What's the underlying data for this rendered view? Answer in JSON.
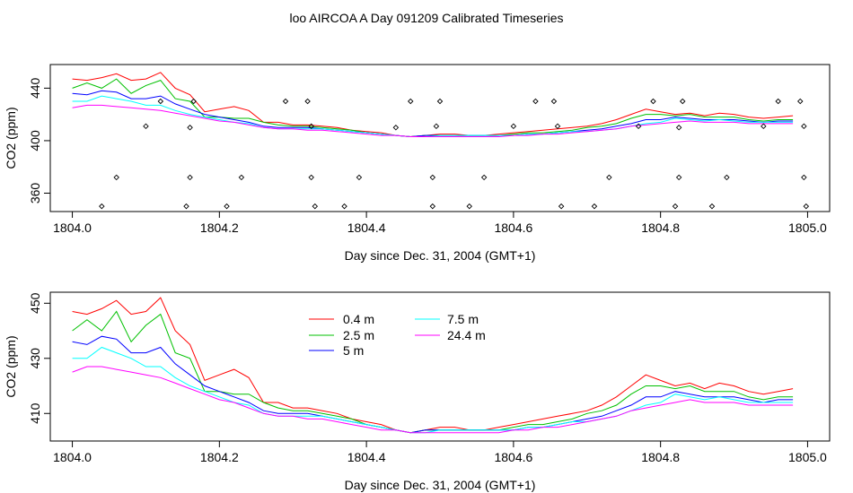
{
  "figure": {
    "title": "loo AIRCOA A  Day 091209  Calibrated Timeseries"
  },
  "chart_data": [
    {
      "type": "line",
      "panel": "top",
      "xlabel": "Day since Dec. 31, 2004 (GMT+1)",
      "ylabel": "CO2 (ppm)",
      "xlim": [
        1803.97,
        1805.03
      ],
      "ylim": [
        346,
        458
      ],
      "xticks": [
        "1804.0",
        "1804.2",
        "1804.4",
        "1804.6",
        "1804.8",
        "1805.0"
      ],
      "yticks": [
        "360",
        "400",
        "440"
      ],
      "grid": false,
      "colors": {
        "0.4 m": "#ff0000",
        "2.5 m": "#00c000",
        "5 m": "#0000ff",
        "7.5 m": "#00ffff",
        "24.4 m": "#ff00ff",
        "points": "#000000"
      },
      "scatter_points": [
        [
          1804.04,
          350
        ],
        [
          1804.06,
          372
        ],
        [
          1804.1,
          411
        ],
        [
          1804.12,
          430
        ],
        [
          1804.155,
          350
        ],
        [
          1804.16,
          372
        ],
        [
          1804.16,
          410
        ],
        [
          1804.165,
          430
        ],
        [
          1804.21,
          350
        ],
        [
          1804.23,
          372
        ],
        [
          1804.29,
          430
        ],
        [
          1804.32,
          430
        ],
        [
          1804.325,
          411
        ],
        [
          1804.325,
          372
        ],
        [
          1804.33,
          350
        ],
        [
          1804.37,
          350
        ],
        [
          1804.39,
          372
        ],
        [
          1804.44,
          410
        ],
        [
          1804.46,
          430
        ],
        [
          1804.49,
          350
        ],
        [
          1804.49,
          372
        ],
        [
          1804.495,
          411
        ],
        [
          1804.5,
          430
        ],
        [
          1804.54,
          350
        ],
        [
          1804.56,
          372
        ],
        [
          1804.6,
          411
        ],
        [
          1804.63,
          430
        ],
        [
          1804.655,
          430
        ],
        [
          1804.66,
          411
        ],
        [
          1804.665,
          350
        ],
        [
          1804.71,
          350
        ],
        [
          1804.73,
          372
        ],
        [
          1804.77,
          411
        ],
        [
          1804.79,
          430
        ],
        [
          1804.82,
          350
        ],
        [
          1804.825,
          372
        ],
        [
          1804.825,
          410
        ],
        [
          1804.83,
          430
        ],
        [
          1804.87,
          350
        ],
        [
          1804.89,
          372
        ],
        [
          1804.94,
          411
        ],
        [
          1804.96,
          430
        ],
        [
          1804.99,
          430
        ],
        [
          1804.995,
          411
        ],
        [
          1804.995,
          372
        ],
        [
          1804.998,
          350
        ]
      ]
    },
    {
      "type": "line",
      "panel": "bottom",
      "xlabel": "Day since Dec. 31, 2004 (GMT+1)",
      "ylabel": "CO2 (ppm)",
      "xlim": [
        1803.97,
        1805.03
      ],
      "ylim": [
        400,
        454
      ],
      "xticks": [
        "1804.0",
        "1804.2",
        "1804.4",
        "1804.6",
        "1804.8",
        "1805.0"
      ],
      "yticks": [
        "410",
        "430",
        "450"
      ],
      "grid": false,
      "legend": [
        {
          "name": "0.4 m",
          "color": "#ff0000"
        },
        {
          "name": "2.5 m",
          "color": "#00c000"
        },
        {
          "name": "5 m",
          "color": "#0000ff"
        },
        {
          "name": "7.5 m",
          "color": "#00ffff"
        },
        {
          "name": "24.4 m",
          "color": "#ff00ff"
        }
      ]
    }
  ],
  "series_x": [
    1804.0,
    1804.02,
    1804.04,
    1804.06,
    1804.08,
    1804.1,
    1804.12,
    1804.14,
    1804.16,
    1804.18,
    1804.2,
    1804.22,
    1804.24,
    1804.26,
    1804.28,
    1804.3,
    1804.32,
    1804.34,
    1804.36,
    1804.38,
    1804.4,
    1804.42,
    1804.44,
    1804.46,
    1804.48,
    1804.5,
    1804.52,
    1804.54,
    1804.56,
    1804.58,
    1804.6,
    1804.62,
    1804.64,
    1804.66,
    1804.68,
    1804.7,
    1804.72,
    1804.74,
    1804.76,
    1804.78,
    1804.8,
    1804.82,
    1804.84,
    1804.86,
    1804.88,
    1804.9,
    1804.92,
    1804.94,
    1804.96,
    1804.98
  ],
  "series": [
    {
      "name": "0.4 m",
      "color": "#ff0000",
      "values": [
        447,
        446,
        448,
        451,
        446,
        447,
        452,
        440,
        435,
        422,
        424,
        426,
        423,
        414,
        414,
        412,
        412,
        411,
        410,
        408,
        407,
        406,
        404,
        403,
        404,
        405,
        405,
        404,
        404,
        405,
        406,
        407,
        408,
        409,
        410,
        411,
        413,
        416,
        420,
        424,
        422,
        420,
        421,
        419,
        421,
        420,
        418,
        417,
        418,
        419
      ]
    },
    {
      "name": "2.5 m",
      "color": "#00c000",
      "values": [
        440,
        444,
        440,
        447,
        436,
        442,
        446,
        432,
        430,
        418,
        418,
        417,
        417,
        414,
        412,
        411,
        411,
        410,
        409,
        408,
        406,
        405,
        404,
        403,
        404,
        404,
        404,
        404,
        404,
        404,
        405,
        406,
        406,
        407,
        408,
        410,
        411,
        413,
        417,
        420,
        420,
        419,
        420,
        418,
        418,
        418,
        416,
        415,
        416,
        416
      ]
    },
    {
      "name": "5 m",
      "color": "#0000ff",
      "values": [
        436,
        435,
        438,
        437,
        432,
        432,
        434,
        428,
        424,
        420,
        418,
        416,
        414,
        411,
        410,
        410,
        410,
        409,
        408,
        407,
        406,
        405,
        404,
        403,
        404,
        404,
        404,
        404,
        404,
        404,
        404,
        405,
        405,
        406,
        407,
        408,
        409,
        411,
        413,
        416,
        416,
        418,
        417,
        416,
        416,
        416,
        415,
        414,
        415,
        415
      ]
    },
    {
      "name": "7.5 m",
      "color": "#00ffff",
      "values": [
        430,
        430,
        434,
        432,
        430,
        427,
        427,
        423,
        420,
        418,
        416,
        414,
        413,
        410,
        409,
        409,
        409,
        409,
        408,
        407,
        406,
        405,
        404,
        403,
        403,
        404,
        404,
        404,
        404,
        404,
        404,
        405,
        405,
        406,
        407,
        407,
        408,
        409,
        411,
        413,
        414,
        417,
        416,
        415,
        416,
        415,
        414,
        414,
        414,
        414
      ]
    },
    {
      "name": "24.4 m",
      "color": "#ff00ff",
      "values": [
        425,
        427,
        427,
        426,
        425,
        424,
        423,
        421,
        419,
        417,
        415,
        414,
        412,
        410,
        409,
        409,
        408,
        408,
        407,
        406,
        405,
        404,
        404,
        403,
        403,
        403,
        403,
        403,
        403,
        403,
        404,
        404,
        405,
        405,
        406,
        407,
        408,
        409,
        411,
        412,
        413,
        414,
        415,
        414,
        414,
        414,
        413,
        413,
        413,
        413
      ]
    }
  ]
}
